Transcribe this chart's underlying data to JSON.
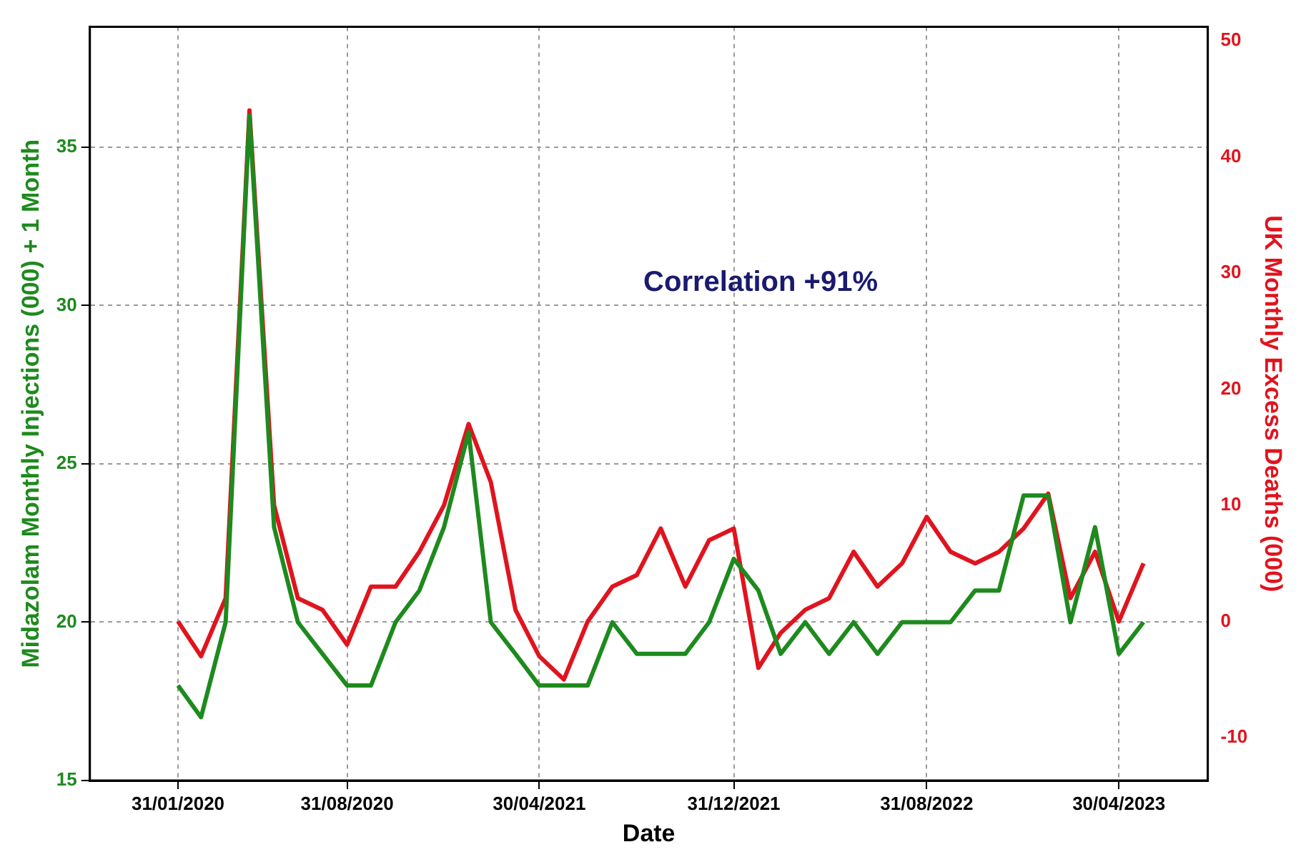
{
  "chart_data": {
    "type": "line",
    "xlabel": "Date",
    "ylabel": "Midazolam Monthly Injections (000) + 1 Month",
    "y2label": "UK Monthly Excess Deaths (000)",
    "annotations": [
      "Correlation +91%"
    ],
    "x": [
      "2020-01-31",
      "2020-02-29",
      "2020-03-31",
      "2020-04-30",
      "2020-05-31",
      "2020-06-30",
      "2020-07-31",
      "2020-08-31",
      "2020-09-30",
      "2020-10-31",
      "2020-11-30",
      "2020-12-31",
      "2021-01-31",
      "2021-02-28",
      "2021-03-31",
      "2021-04-30",
      "2021-05-31",
      "2021-06-30",
      "2021-07-31",
      "2021-08-31",
      "2021-09-30",
      "2021-10-31",
      "2021-11-30",
      "2021-12-31",
      "2022-01-31",
      "2022-02-28",
      "2022-03-31",
      "2022-04-30",
      "2022-05-31",
      "2022-06-30",
      "2022-07-31",
      "2022-08-31",
      "2022-09-30",
      "2022-10-31",
      "2022-11-30",
      "2022-12-31",
      "2023-01-31",
      "2023-02-28",
      "2023-03-31",
      "2023-04-30",
      "2023-05-31"
    ],
    "series": [
      {
        "color": "#1e8a1e",
        "values": [
          18,
          17,
          20,
          36,
          23,
          20,
          19,
          18,
          18,
          20,
          21,
          23,
          26,
          20,
          19,
          18,
          18,
          18,
          20,
          19,
          19,
          19,
          20,
          22,
          21,
          19,
          20,
          19,
          20,
          19,
          20,
          20,
          20,
          21,
          21,
          24,
          24,
          20,
          23,
          19,
          20
        ]
      },
      {
        "color": "#e0141e",
        "axis": "y2",
        "values": [
          0,
          -3,
          2,
          44,
          10,
          2,
          1,
          -2,
          3,
          3,
          6,
          10,
          17,
          12,
          1,
          -3,
          -5,
          0,
          3,
          4,
          8,
          3,
          7,
          8,
          -4,
          -1,
          1,
          2,
          6,
          3,
          5,
          9,
          6,
          5,
          6,
          8,
          11,
          2,
          6,
          0,
          5
        ]
      }
    ],
    "xlim": [
      "2019-10-12",
      "2023-08-20"
    ],
    "xticks": [
      {
        "value": "2020-01-31",
        "label": "31/01/2020"
      },
      {
        "value": "2020-08-31",
        "label": "31/08/2020"
      },
      {
        "value": "2021-04-30",
        "label": "30/04/2021"
      },
      {
        "value": "2021-12-31",
        "label": "31/12/2021"
      },
      {
        "value": "2022-08-31",
        "label": "31/08/2022"
      },
      {
        "value": "2023-04-30",
        "label": "30/04/2023"
      }
    ],
    "ylim": [
      15,
      38.8
    ],
    "yticks": [
      15,
      20,
      25,
      30,
      35
    ],
    "y2lim": [
      -13.7,
      51.2
    ],
    "y2ticks": [
      -10,
      0,
      10,
      20,
      30,
      40,
      50
    ],
    "grid": true,
    "legend": false,
    "marker": "none",
    "line_style": "solid"
  }
}
